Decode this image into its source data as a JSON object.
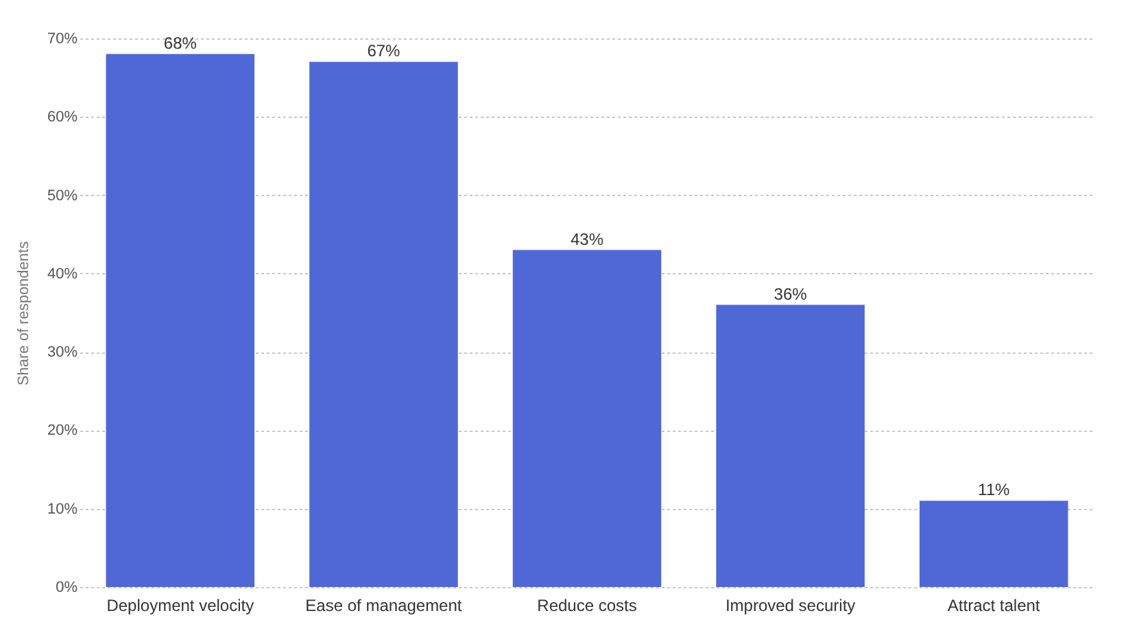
{
  "chart_data": {
    "type": "bar",
    "ylabel": "Share of respondents",
    "categories": [
      "Deployment velocity",
      "Ease of management",
      "Reduce costs",
      "Improved security",
      "Attract talent"
    ],
    "values": [
      68,
      67,
      43,
      36,
      11
    ],
    "value_labels": [
      "68%",
      "67%",
      "43%",
      "36%",
      "11%"
    ],
    "color": "#5068d6",
    "ylim": [
      0,
      70
    ],
    "yticks": [
      {
        "value": 0,
        "label": "0%"
      },
      {
        "value": 10,
        "label": "10%"
      },
      {
        "value": 20,
        "label": "20%"
      },
      {
        "value": 30,
        "label": "30%"
      },
      {
        "value": 40,
        "label": "40%"
      },
      {
        "value": 50,
        "label": "50%"
      },
      {
        "value": 60,
        "label": "60%"
      },
      {
        "value": 70,
        "label": "70%"
      }
    ],
    "grid": "y"
  }
}
